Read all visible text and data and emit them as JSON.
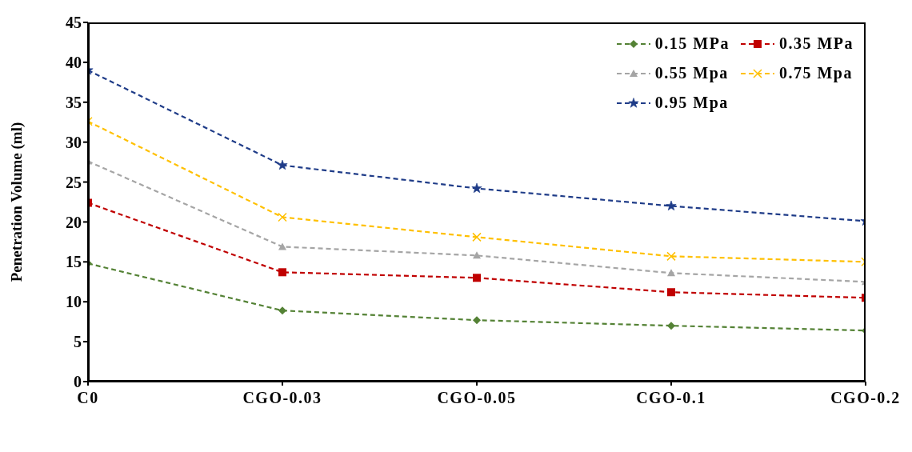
{
  "chart_data": {
    "type": "line",
    "ylabel": "Penetration Volume (ml)",
    "categories": [
      "C0",
      "CGO-0.03",
      "CGO-0.05",
      "CGO-0.1",
      "CGO-0.2"
    ],
    "ylim": [
      0,
      45
    ],
    "yticks": [
      0,
      5,
      10,
      15,
      20,
      25,
      30,
      35,
      40,
      45
    ],
    "grid": false,
    "legend": "top right",
    "line_style": "dashed",
    "series": [
      {
        "name": "0.15 MPa",
        "color": "#548235",
        "marker": "diamond",
        "values": [
          14.8,
          8.9,
          7.7,
          7.0,
          6.4
        ]
      },
      {
        "name": "0.35 MPa",
        "color": "#c00000",
        "marker": "square",
        "values": [
          22.4,
          13.7,
          13.0,
          11.2,
          10.5
        ]
      },
      {
        "name": "0.55 Mpa",
        "color": "#a5a5a5",
        "marker": "triangle",
        "values": [
          27.6,
          16.9,
          15.8,
          13.6,
          12.5
        ]
      },
      {
        "name": "0.75 Mpa",
        "color": "#ffc000",
        "marker": "cross",
        "values": [
          32.6,
          20.6,
          18.1,
          15.7,
          15.0
        ]
      },
      {
        "name": "0.95 Mpa",
        "color": "#1f3c88",
        "marker": "star",
        "values": [
          39.0,
          27.1,
          24.2,
          22.0,
          20.1
        ]
      }
    ]
  }
}
